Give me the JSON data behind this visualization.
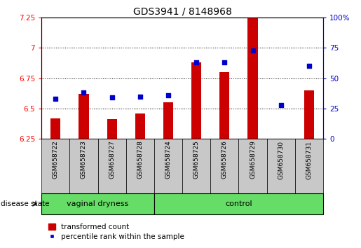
{
  "title": "GDS3941 / 8148968",
  "samples": [
    "GSM658722",
    "GSM658723",
    "GSM658727",
    "GSM658728",
    "GSM658724",
    "GSM658725",
    "GSM658726",
    "GSM658729",
    "GSM658730",
    "GSM658731"
  ],
  "bar_values": [
    6.42,
    6.62,
    6.41,
    6.46,
    6.55,
    6.88,
    6.8,
    7.26,
    6.23,
    6.65
  ],
  "percentile_values": [
    33,
    38,
    34,
    35,
    36,
    63,
    63,
    73,
    28,
    60
  ],
  "ymin": 6.25,
  "ymax": 7.25,
  "bar_color": "#CC0000",
  "blue_color": "#0000CC",
  "bar_bottom": 6.25,
  "vd_count": 4,
  "legend_bar_label": "transformed count",
  "legend_blue_label": "percentile rank within the sample",
  "group_annotation": "disease state",
  "vd_label": "vaginal dryness",
  "ctrl_label": "control",
  "green_color": "#66DD66",
  "gray_color": "#C8C8C8",
  "title_fontsize": 10,
  "tick_fontsize": 7.5,
  "label_fontsize": 6.5,
  "group_fontsize": 8,
  "legend_fontsize": 7.5,
  "yticks": [
    6.25,
    6.5,
    6.75,
    7.0,
    7.25
  ],
  "ytick_labels": [
    "6.25",
    "6.5",
    "6.75",
    "7",
    "7.25"
  ],
  "right_yticks": [
    0,
    25,
    50,
    75,
    100
  ],
  "right_ytick_labels": [
    "0",
    "25",
    "50",
    "75",
    "100%"
  ],
  "grid_lines": [
    6.5,
    6.75,
    7.0
  ]
}
